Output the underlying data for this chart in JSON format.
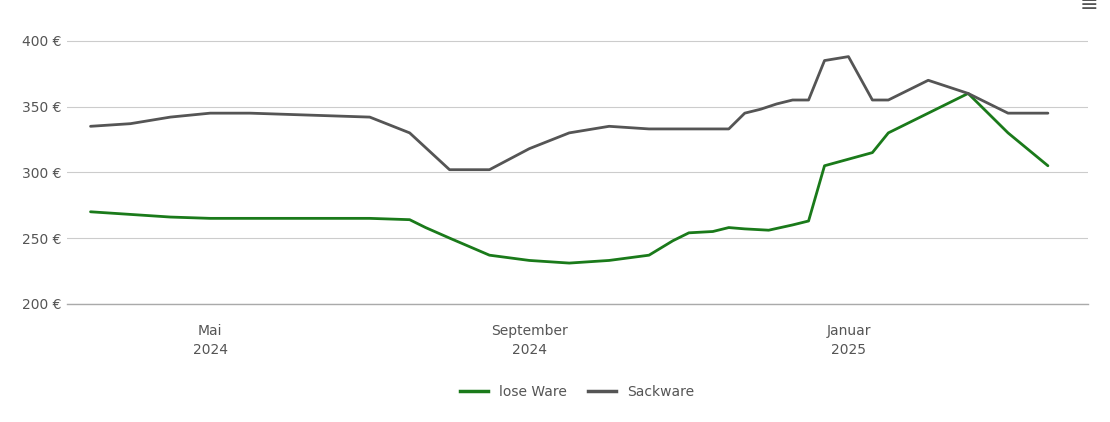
{
  "ylim": [
    200,
    415
  ],
  "yticks": [
    200,
    250,
    300,
    350,
    400
  ],
  "ytick_labels": [
    "200 €",
    "250 €",
    "300 €",
    "350 €",
    "400 €"
  ],
  "background_color": "#ffffff",
  "grid_color": "#cccccc",
  "lose_ware_color": "#1a7a1a",
  "sackware_color": "#555555",
  "legend_labels": [
    "lose Ware",
    "Sackware"
  ],
  "x_tick_labels": [
    [
      "Mai",
      "2024"
    ],
    [
      "September",
      "2024"
    ],
    [
      "Januar",
      "2025"
    ]
  ],
  "lose_ware": {
    "x": [
      0,
      0.5,
      1,
      1.5,
      2,
      2.5,
      3,
      3.5,
      4,
      4.2,
      4.5,
      5,
      5.5,
      6,
      6.5,
      7,
      7.3,
      7.5,
      7.8,
      8,
      8.2,
      8.5,
      8.8,
      9,
      9.2,
      9.5,
      9.8,
      10,
      10.5,
      11,
      11.5,
      12
    ],
    "y": [
      270,
      268,
      266,
      265,
      265,
      265,
      265,
      265,
      264,
      258,
      250,
      237,
      233,
      231,
      233,
      237,
      248,
      254,
      255,
      258,
      257,
      256,
      260,
      263,
      305,
      310,
      315,
      330,
      345,
      360,
      330,
      305
    ]
  },
  "sackware": {
    "x": [
      0,
      0.5,
      1,
      1.5,
      2,
      2.5,
      3,
      3.5,
      4,
      4.5,
      5,
      5.5,
      6,
      6.5,
      7,
      7.5,
      7.8,
      8,
      8.2,
      8.4,
      8.6,
      8.8,
      9,
      9.2,
      9.5,
      9.8,
      10,
      10.5,
      11,
      11.5,
      12
    ],
    "y": [
      335,
      337,
      342,
      345,
      345,
      344,
      343,
      342,
      330,
      302,
      302,
      318,
      330,
      335,
      333,
      333,
      333,
      333,
      345,
      348,
      352,
      355,
      355,
      385,
      388,
      355,
      355,
      370,
      360,
      345,
      345
    ]
  }
}
